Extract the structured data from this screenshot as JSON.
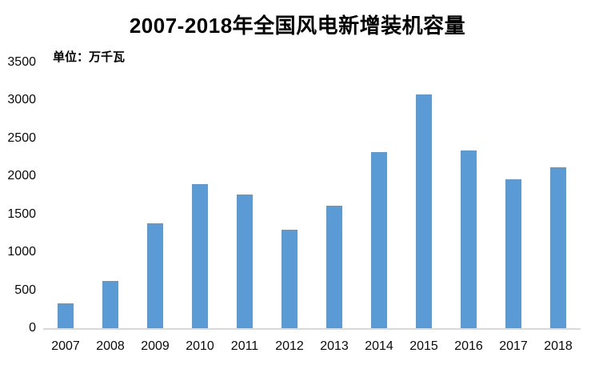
{
  "chart": {
    "title": "2007-2018年全国风电新增装机容量",
    "unit_label": "单位：万千瓦"
  },
  "chart_data": {
    "type": "bar",
    "title": "2007-2018年全国风电新增装机容量",
    "unit": "万千瓦",
    "categories": [
      "2007",
      "2008",
      "2009",
      "2010",
      "2011",
      "2012",
      "2013",
      "2014",
      "2015",
      "2016",
      "2017",
      "2018"
    ],
    "values": [
      330,
      625,
      1380,
      1893,
      1763,
      1296,
      1610,
      2320,
      3075,
      2337,
      1966,
      2114
    ],
    "yticks": [
      0,
      500,
      1000,
      1500,
      2000,
      2500,
      3000,
      3500
    ],
    "ylim": [
      0,
      3500
    ],
    "xlabel": "",
    "ylabel": "",
    "grid": false,
    "legend": false,
    "bar_color": "#5B9BD5",
    "axis_line_color": "#D9D9D9",
    "text_color": "#0a0a0a"
  }
}
